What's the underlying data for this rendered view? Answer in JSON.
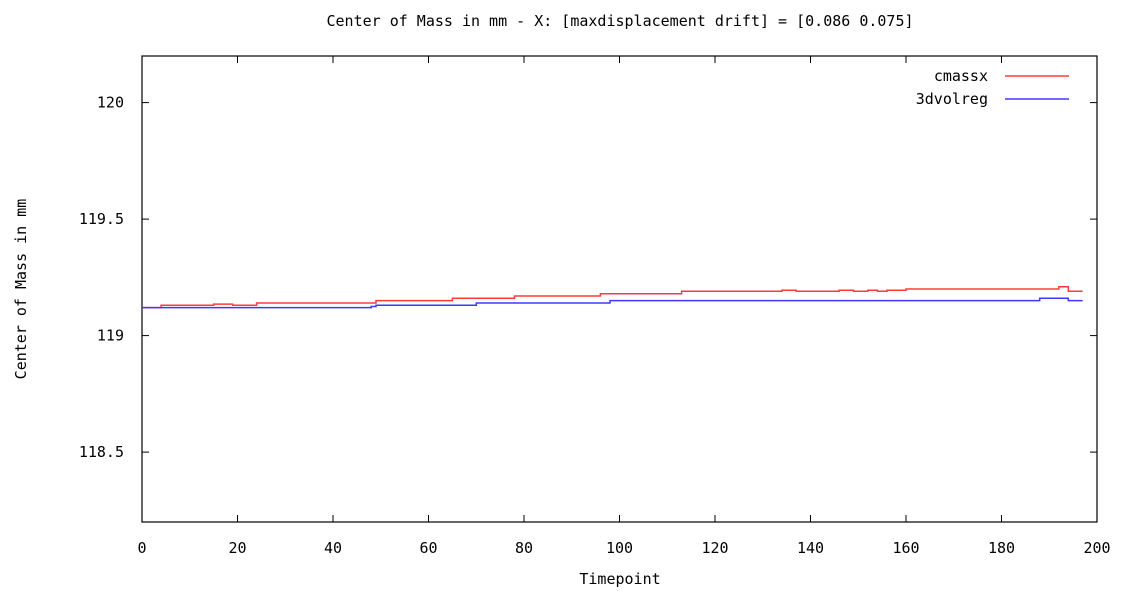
{
  "chart_data": {
    "type": "line",
    "title": "Center of Mass in mm - X: [maxdisplacement drift] = [0.086 0.075]",
    "xlabel": "Timepoint",
    "ylabel": "Center of Mass in mm",
    "xlim": [
      0,
      200
    ],
    "ylim": [
      118.2,
      120.2
    ],
    "xticks": [
      0,
      20,
      40,
      60,
      80,
      100,
      120,
      140,
      160,
      180,
      200
    ],
    "xtick_labels": [
      "0",
      "20",
      "40",
      "60",
      "80",
      "100",
      "120",
      "140",
      "160",
      "180",
      "200"
    ],
    "yticks": [
      118.5,
      119,
      119.5,
      120
    ],
    "ytick_labels": [
      "118.5",
      "119",
      "119.5",
      "120"
    ],
    "grid": false,
    "legend_position": "top-right",
    "series": [
      {
        "name": "cmassx",
        "color": "#ff3b3b",
        "x": [
          0,
          4,
          14,
          15,
          18,
          19,
          22,
          24,
          25,
          48,
          49,
          52,
          63,
          65,
          68,
          76,
          78,
          81,
          94,
          96,
          101,
          109,
          113,
          131,
          134,
          137,
          139,
          146,
          149,
          152,
          154,
          156,
          160,
          191,
          192,
          194,
          197
        ],
        "y": [
          119.12,
          119.13,
          119.13,
          119.135,
          119.135,
          119.13,
          119.13,
          119.14,
          119.14,
          119.14,
          119.15,
          119.15,
          119.15,
          119.16,
          119.16,
          119.16,
          119.17,
          119.17,
          119.17,
          119.18,
          119.18,
          119.18,
          119.19,
          119.19,
          119.195,
          119.19,
          119.19,
          119.195,
          119.19,
          119.195,
          119.19,
          119.195,
          119.2,
          119.2,
          119.21,
          119.19,
          119.19
        ]
      },
      {
        "name": "3dvolreg",
        "color": "#3b3bff",
        "x": [
          0,
          23,
          24,
          48,
          49,
          69,
          70,
          97,
          98,
          187,
          188,
          193,
          194,
          197
        ],
        "y": [
          119.12,
          119.12,
          119.12,
          119.125,
          119.13,
          119.13,
          119.14,
          119.14,
          119.15,
          119.15,
          119.16,
          119.16,
          119.15,
          119.15
        ]
      }
    ]
  }
}
